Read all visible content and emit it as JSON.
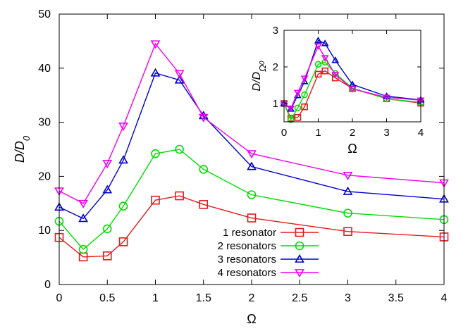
{
  "chart_data": [
    {
      "type": "line",
      "xlabel": "Ω",
      "ylabel": "D/D0",
      "ylabel_parts": [
        "D/D",
        "0"
      ],
      "xlim": [
        0,
        4
      ],
      "ylim": [
        0,
        50
      ],
      "x_ticks": [
        "0",
        "0.5",
        "1",
        "1.5",
        "2",
        "2.5",
        "3",
        "3.5",
        "4"
      ],
      "y_ticks": [
        "0",
        "10",
        "20",
        "30",
        "40",
        "50"
      ],
      "grid": false,
      "legend_position": "bottom-center",
      "series": [
        {
          "name": "1 resonator",
          "color": "#e41a1c",
          "marker": "square",
          "x": [
            0,
            0.25,
            0.5,
            0.667,
            1,
            1.25,
            1.5,
            2,
            3,
            4
          ],
          "y": [
            8.7,
            5.1,
            5.3,
            7.9,
            15.6,
            16.4,
            14.8,
            12.3,
            9.8,
            8.8
          ]
        },
        {
          "name": "2 resonators",
          "color": "#00dd00",
          "marker": "circle",
          "x": [
            0,
            0.25,
            0.5,
            0.667,
            1,
            1.25,
            1.5,
            2,
            3,
            4
          ],
          "y": [
            11.7,
            6.5,
            10.3,
            14.5,
            24.2,
            25.0,
            21.3,
            16.6,
            13.2,
            12.0
          ]
        },
        {
          "name": "3 resonators",
          "color": "#0000cc",
          "marker": "triangle-up",
          "x": [
            0,
            0.25,
            0.5,
            0.667,
            1,
            1.25,
            1.5,
            2,
            3,
            4
          ],
          "y": [
            14.3,
            12.2,
            17.5,
            23.0,
            39.1,
            37.8,
            31.2,
            21.8,
            17.2,
            15.8
          ]
        },
        {
          "name": "4 resonators",
          "color": "#ee00ee",
          "marker": "triangle-down",
          "x": [
            0,
            0.25,
            0.5,
            0.667,
            1,
            1.25,
            1.5,
            2,
            3,
            4
          ],
          "y": [
            17.3,
            15.0,
            22.4,
            29.3,
            44.5,
            39.0,
            30.9,
            24.2,
            20.2,
            18.8
          ]
        }
      ]
    },
    {
      "type": "line",
      "xlabel": "Ω",
      "ylabel": "D/DΩ0",
      "ylabel_parts": [
        "D/D",
        "Ω",
        "0"
      ],
      "xlim": [
        0,
        4
      ],
      "ylim": [
        0.5,
        3
      ],
      "x_ticks": [
        "0",
        "1",
        "2",
        "3",
        "4"
      ],
      "y_ticks": [
        "1",
        "2",
        "3"
      ],
      "grid": false,
      "series": [
        {
          "name": "1 resonator",
          "color": "#e41a1c",
          "marker": "square",
          "x": [
            0,
            0.2,
            0.4,
            0.6,
            1,
            1.2,
            1.5,
            2,
            3,
            4
          ],
          "y": [
            1.0,
            0.6,
            0.62,
            0.91,
            1.8,
            1.89,
            1.7,
            1.41,
            1.13,
            1.01
          ]
        },
        {
          "name": "2 resonators",
          "color": "#00dd00",
          "marker": "circle",
          "x": [
            0,
            0.2,
            0.4,
            0.6,
            1,
            1.2,
            1.5,
            2,
            3,
            4
          ],
          "y": [
            1.0,
            0.56,
            0.88,
            1.24,
            2.07,
            2.13,
            1.82,
            1.42,
            1.13,
            1.03
          ]
        },
        {
          "name": "3 resonators",
          "color": "#0000cc",
          "marker": "triangle-up",
          "x": [
            0,
            0.2,
            0.4,
            0.6,
            1,
            1.2,
            1.5,
            2,
            3,
            4
          ],
          "y": [
            1.0,
            0.85,
            1.22,
            1.6,
            2.72,
            2.64,
            2.18,
            1.52,
            1.2,
            1.1
          ]
        },
        {
          "name": "4 resonators",
          "color": "#ee00ee",
          "marker": "triangle-down",
          "x": [
            0,
            0.2,
            0.4,
            0.6,
            1,
            1.2,
            1.5,
            2,
            3,
            4
          ],
          "y": [
            1.0,
            0.87,
            1.3,
            1.69,
            2.57,
            2.25,
            1.79,
            1.4,
            1.17,
            1.09
          ]
        }
      ]
    }
  ]
}
